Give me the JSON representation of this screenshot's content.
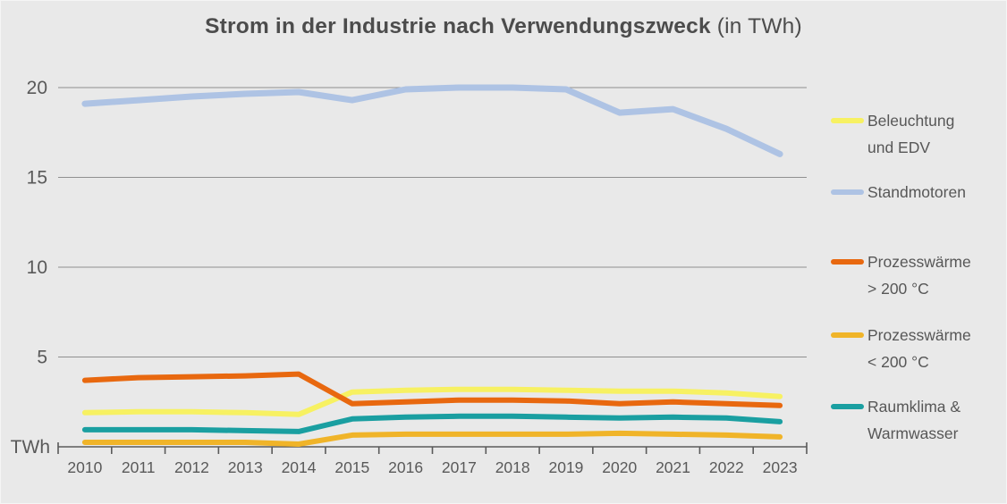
{
  "title": {
    "main": "Strom in der Industrie nach Verwendungszweck",
    "suffix": " (in TWh)"
  },
  "y_axis": {
    "unit_label": "TWh",
    "tick_labels": [
      "20",
      "15",
      "10",
      "5"
    ]
  },
  "colors": {
    "background": "#e9e9e9",
    "gridline": "#909090",
    "axis": "#5a5a5a",
    "axis_text": "#595959",
    "title_text": "#4c4c4c",
    "legend_text": "#575757"
  },
  "chart_data": {
    "type": "line",
    "title": "Strom in der Industrie nach Verwendungszweck (in TWh)",
    "xlabel": "",
    "ylabel": "TWh",
    "ylim": [
      0,
      21
    ],
    "y_ticks": [
      5,
      10,
      15,
      20
    ],
    "grid": true,
    "legend_position": "right",
    "categories": [
      "2010",
      "2011",
      "2012",
      "2013",
      "2014",
      "2015",
      "2016",
      "2017",
      "2018",
      "2019",
      "2020",
      "2021",
      "2022",
      "2023"
    ],
    "series": [
      {
        "name": "Beleuchtung und EDV",
        "label_lines": [
          "Beleuchtung",
          "und EDV"
        ],
        "color": "#f7f162",
        "values": [
          1.9,
          1.95,
          1.95,
          1.9,
          1.8,
          3.05,
          3.15,
          3.2,
          3.2,
          3.15,
          3.1,
          3.1,
          3.0,
          2.8
        ]
      },
      {
        "name": "Standmotoren",
        "label_lines": [
          "Standmotoren"
        ],
        "color": "#aec3e4",
        "values": [
          19.1,
          19.3,
          19.5,
          19.65,
          19.75,
          19.3,
          19.9,
          20.0,
          20.0,
          19.9,
          18.6,
          18.8,
          17.7,
          16.3
        ]
      },
      {
        "name": "Prozesswärme > 200 °C",
        "label_lines": [
          "Prozesswärme",
          "> 200 °C"
        ],
        "color": "#e8680f",
        "values": [
          3.7,
          3.85,
          3.9,
          3.95,
          4.05,
          2.4,
          2.5,
          2.6,
          2.6,
          2.55,
          2.4,
          2.5,
          2.4,
          2.3
        ]
      },
      {
        "name": "Prozesswärme < 200 °C",
        "label_lines": [
          "Prozesswärme",
          "< 200 °C"
        ],
        "color": "#f0b429",
        "values": [
          0.25,
          0.25,
          0.25,
          0.25,
          0.15,
          0.65,
          0.7,
          0.7,
          0.7,
          0.7,
          0.75,
          0.7,
          0.65,
          0.55
        ]
      },
      {
        "name": "Raumklima & Warmwasser",
        "label_lines": [
          "Raumklima &",
          "Warmwasser"
        ],
        "color": "#1a9fa1",
        "values": [
          0.95,
          0.95,
          0.95,
          0.9,
          0.85,
          1.55,
          1.65,
          1.7,
          1.7,
          1.65,
          1.6,
          1.65,
          1.6,
          1.4
        ]
      }
    ]
  }
}
